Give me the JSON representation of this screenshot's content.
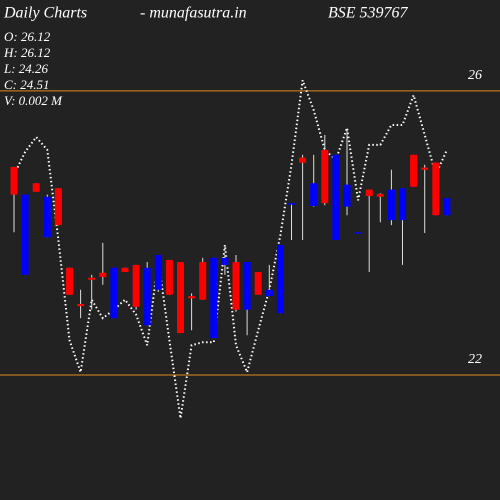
{
  "chart_data": {
    "type": "candlestick",
    "title": "Daily Charts",
    "site": "-  munafasutra.in",
    "symbol": "BSE 539767",
    "info": [
      "O: 26.12",
      "H: 26.12",
      "L: 24.26",
      "C: 24.51",
      "V: 0.002  M"
    ],
    "open": [
      24.93,
      23.41,
      24.7,
      23.94,
      24.63,
      23.51,
      23.0,
      23.37,
      23.44,
      22.8,
      23.51,
      23.55,
      22.7,
      23.2,
      23.62,
      23.59,
      23.11,
      23.59,
      22.52,
      23.55,
      23.59,
      22.92,
      23.45,
      23.11,
      22.87,
      24.42,
      25.06,
      24.38,
      25.17,
      23.9,
      24.37,
      23.99,
      24.61,
      24.55,
      24.18,
      24.18,
      25.1,
      24.92,
      24.99,
      24.25
    ],
    "high": [
      24.93,
      24.54,
      24.7,
      24.54,
      24.63,
      23.51,
      23.2,
      23.41,
      23.86,
      23.51,
      23.51,
      23.55,
      23.59,
      23.69,
      23.62,
      23.59,
      23.15,
      23.65,
      23.65,
      23.69,
      23.69,
      23.59,
      23.45,
      23.55,
      23.83,
      24.42,
      25.1,
      25.1,
      25.38,
      25.1,
      25.45,
      24.01,
      24.61,
      24.56,
      24.89,
      24.63,
      25.1,
      24.96,
      24.99,
      24.49
    ],
    "low": [
      24.01,
      23.41,
      24.58,
      23.94,
      24.11,
      23.13,
      22.8,
      22.92,
      23.27,
      22.8,
      23.45,
      22.92,
      22.7,
      23.17,
      23.13,
      22.59,
      22.63,
      23.06,
      22.52,
      23.41,
      22.89,
      22.56,
      23.13,
      23.11,
      22.87,
      23.9,
      23.9,
      24.37,
      24.39,
      23.9,
      24.25,
      23.99,
      23.45,
      24.15,
      24.11,
      23.55,
      24.65,
      24.0,
      24.25,
      24.25
    ],
    "close": [
      24.54,
      24.54,
      24.58,
      24.51,
      24.11,
      23.13,
      22.97,
      23.34,
      23.38,
      23.51,
      23.45,
      22.96,
      23.51,
      23.69,
      23.13,
      22.59,
      23.08,
      23.06,
      23.65,
      23.65,
      22.92,
      23.59,
      23.13,
      23.2,
      23.83,
      24.42,
      24.99,
      24.7,
      24.42,
      25.1,
      24.68,
      24.01,
      24.52,
      24.51,
      24.61,
      24.63,
      24.65,
      24.89,
      24.25,
      24.49
    ],
    "line": [
      24.82,
      25.14,
      25.35,
      25.17,
      23.9,
      22.49,
      22.04,
      23.06,
      22.8,
      22.92,
      23.06,
      22.85,
      22.42,
      23.62,
      22.49,
      21.39,
      22.42,
      22.46,
      22.46,
      23.83,
      22.42,
      22.04,
      22.63,
      23.2,
      23.97,
      24.96,
      26.15,
      25.73,
      25.17,
      25.03,
      25.48,
      24.46,
      25.24,
      25.24,
      25.52,
      25.52,
      25.94,
      25.38,
      24.82,
      25.17
    ],
    "up_color": "#0000ff",
    "down_color": "#ff0000",
    "line_color": "#ffffff",
    "level_color": "#e08a1e",
    "ylim": [
      20.24,
      27.28
    ],
    "yticks": [
      22,
      26
    ]
  }
}
